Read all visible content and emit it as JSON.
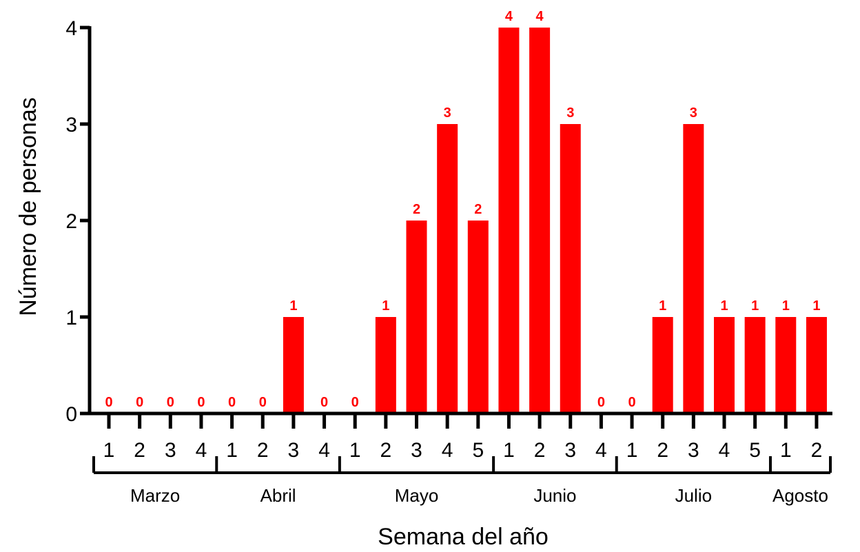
{
  "chart_data": {
    "type": "bar",
    "xlabel": "Semana del año",
    "ylabel": "Número de personas",
    "ylim": [
      0,
      4
    ],
    "yticks": [
      "0",
      "1",
      "2",
      "3",
      "4"
    ],
    "bar_color": "#ff0000",
    "label_color": "#ff0000",
    "categories": [
      "1",
      "2",
      "3",
      "4",
      "1",
      "2",
      "3",
      "4",
      "1",
      "2",
      "3",
      "4",
      "5",
      "1",
      "2",
      "3",
      "4",
      "1",
      "2",
      "3",
      "4",
      "5",
      "1",
      "2"
    ],
    "values": [
      0,
      0,
      0,
      0,
      0,
      0,
      1,
      0,
      0,
      1,
      2,
      3,
      2,
      4,
      4,
      3,
      0,
      0,
      1,
      3,
      1,
      1,
      1,
      1
    ],
    "data_labels": [
      "0",
      "0",
      "0",
      "0",
      "0",
      "0",
      "1",
      "0",
      "0",
      "1",
      "2",
      "3",
      "2",
      "4",
      "4",
      "3",
      "0",
      "0",
      "1",
      "3",
      "1",
      "1",
      "1",
      "1"
    ],
    "months": [
      {
        "name": "Marzo",
        "weeks": 4
      },
      {
        "name": "Abril",
        "weeks": 4
      },
      {
        "name": "Mayo",
        "weeks": 5
      },
      {
        "name": "Junio",
        "weeks": 4
      },
      {
        "name": "Julio",
        "weeks": 5
      },
      {
        "name": "Agosto",
        "weeks": 2
      }
    ]
  }
}
